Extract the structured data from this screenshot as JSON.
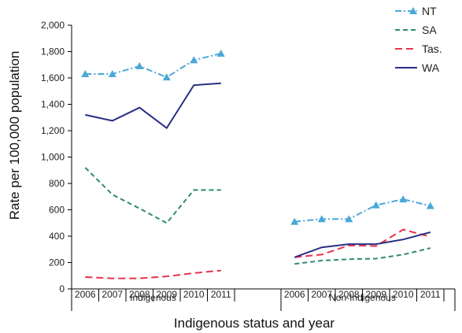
{
  "chart_data": {
    "type": "line",
    "title": "",
    "xlabel": "Indigenous status and year",
    "ylabel": "Rate per 100,000 population",
    "ylim": [
      0,
      2000
    ],
    "yticks": [
      0,
      200,
      400,
      600,
      800,
      1000,
      1200,
      1400,
      1600,
      1800,
      2000
    ],
    "ytick_labels": [
      "0",
      "200",
      "400",
      "600",
      "800",
      "1,000",
      "1,200",
      "1,400",
      "1,600",
      "1,800",
      "2,000"
    ],
    "grid": false,
    "legend_position": "top-right",
    "groups": [
      {
        "label": "Indigenous",
        "years": [
          "2006",
          "2007",
          "2008",
          "2009",
          "2010",
          "2011"
        ]
      },
      {
        "label": "Non-Indigenous",
        "years": [
          "2006",
          "2007",
          "2008",
          "2009",
          "2010",
          "2011"
        ]
      }
    ],
    "series": [
      {
        "name": "NT",
        "color": "#4aa8d8",
        "style": "dashdot",
        "marker": "triangle",
        "indigenous": [
          1630,
          1630,
          1690,
          1605,
          1735,
          1785
        ],
        "non_indigenous": [
          510,
          530,
          530,
          635,
          680,
          630
        ]
      },
      {
        "name": "SA",
        "color": "#2e8b6e",
        "style": "dashed",
        "marker": "none",
        "indigenous": [
          920,
          715,
          610,
          500,
          750,
          750
        ],
        "non_indigenous": [
          190,
          215,
          225,
          230,
          260,
          310
        ]
      },
      {
        "name": "Tas.",
        "color": "#e8334a",
        "style": "longdash",
        "marker": "none",
        "indigenous": [
          90,
          80,
          80,
          95,
          120,
          140
        ],
        "non_indigenous": [
          240,
          260,
          330,
          325,
          450,
          395
        ]
      },
      {
        "name": "WA",
        "color": "#2a2e85",
        "style": "solid",
        "marker": "none",
        "indigenous": [
          1320,
          1275,
          1375,
          1220,
          1545,
          1560
        ],
        "non_indigenous": [
          240,
          315,
          340,
          340,
          375,
          430
        ]
      }
    ]
  }
}
